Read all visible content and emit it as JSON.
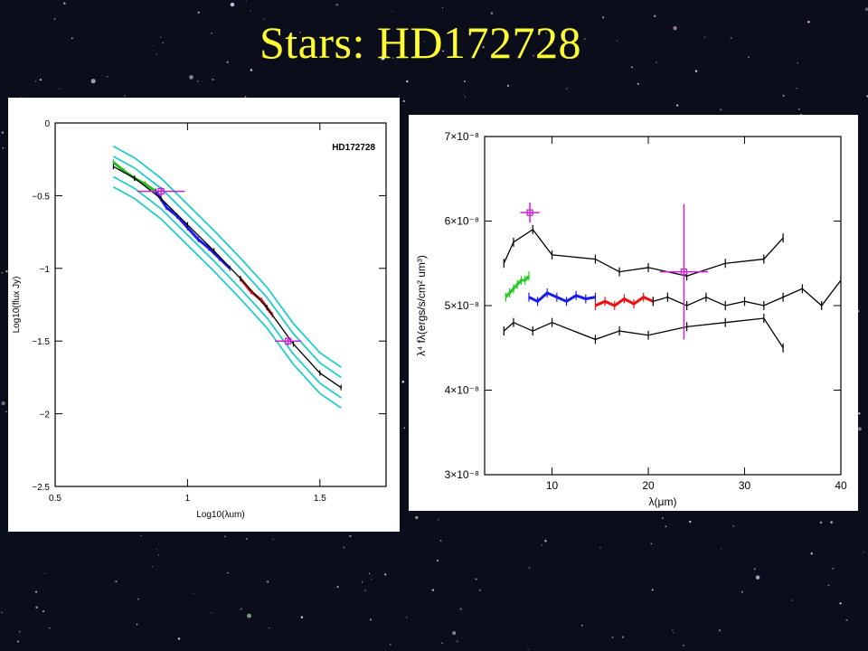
{
  "slide": {
    "title": "Stars: HD172728"
  },
  "chart_data": [
    {
      "type": "line",
      "annotation": "HD172728",
      "xlabel": "Log10(λum)",
      "ylabel": "Log10(flux Jy)",
      "xlim": [
        0.5,
        1.75
      ],
      "ylim": [
        -2.5,
        0
      ],
      "xticks": [
        "0.5",
        "1",
        "1.5"
      ],
      "xtick_values": [
        0.5,
        1.0,
        1.5
      ],
      "yticks": [
        "0",
        "−0.5",
        "−1",
        "−1.5",
        "−2",
        "−2.5"
      ],
      "ytick_values": [
        0,
        -0.5,
        -1,
        -1.5,
        -2,
        -2.5
      ],
      "colors": {
        "model_envelope": "#22cccc",
        "green": "#22bb22",
        "blue": "#1a1aee",
        "red": "#ee1111",
        "photometry": "#cc22cc",
        "black": "#000000"
      },
      "series": [
        {
          "color": "green",
          "x": [
            0.72,
            0.76,
            0.8,
            0.84,
            0.88
          ],
          "y": [
            -0.27,
            -0.33,
            -0.38,
            -0.42,
            -0.47
          ]
        },
        {
          "color": "blue",
          "x": [
            0.88,
            0.92,
            0.96,
            1.0,
            1.04,
            1.08,
            1.12,
            1.16
          ],
          "y": [
            -0.47,
            -0.58,
            -0.64,
            -0.72,
            -0.8,
            -0.86,
            -0.93,
            -1.0
          ]
        },
        {
          "color": "red",
          "x": [
            1.2,
            1.24,
            1.28,
            1.32
          ],
          "y": [
            -1.07,
            -1.16,
            -1.22,
            -1.32
          ]
        },
        {
          "color": "black",
          "x": [
            0.72,
            0.8,
            0.9,
            1.0,
            1.1,
            1.2,
            1.3,
            1.4,
            1.5,
            1.58
          ],
          "y": [
            -0.3,
            -0.38,
            -0.52,
            -0.7,
            -0.88,
            -1.07,
            -1.27,
            -1.52,
            -1.72,
            -1.82
          ]
        }
      ],
      "photometry": [
        {
          "x": 0.9,
          "y": -0.47,
          "xerr": 0.09,
          "yerr": 0.03
        },
        {
          "x": 1.38,
          "y": -1.5,
          "xerr": 0.05,
          "yerr": 0.03
        }
      ]
    },
    {
      "type": "line",
      "xlabel": "λ(μm)",
      "ylabel": "λ⁴ fλ(ergs/s/cm² um³)",
      "xlim": [
        3,
        40
      ],
      "ylim": [
        3e-08,
        7e-08
      ],
      "xticks": [
        "10",
        "20",
        "30",
        "40"
      ],
      "xtick_values": [
        10,
        20,
        30,
        40
      ],
      "yticks": [
        "3×10⁻⁸",
        "4×10⁻⁸",
        "5×10⁻⁸",
        "6×10⁻⁸",
        "7×10⁻⁸"
      ],
      "ytick_values": [
        3e-08,
        4e-08,
        5e-08,
        6e-08,
        7e-08
      ],
      "colors": {
        "green": "#22cc22",
        "blue": "#1a1aee",
        "red": "#ee1111",
        "photometry": "#cc22cc",
        "black": "#000000"
      },
      "series": [
        {
          "color": "green",
          "x": [
            5.2,
            5.6,
            6.0,
            6.4,
            6.8,
            7.2,
            7.6
          ],
          "y": [
            5.1e-08,
            5.15e-08,
            5.2e-08,
            5.25e-08,
            5.3e-08,
            5.3e-08,
            5.35e-08
          ]
        },
        {
          "color": "blue",
          "x": [
            7.6,
            8.5,
            9.5,
            10.5,
            11.5,
            12.5,
            13.5,
            14.5
          ],
          "y": [
            5.1e-08,
            5.05e-08,
            5.15e-08,
            5.1e-08,
            5.05e-08,
            5.12e-08,
            5.08e-08,
            5.1e-08
          ]
        },
        {
          "color": "red",
          "x": [
            14.5,
            15.5,
            16.5,
            17.5,
            18.5,
            19.5,
            20.5
          ],
          "y": [
            5e-08,
            5.05e-08,
            5e-08,
            5.08e-08,
            5.02e-08,
            5.1e-08,
            5.05e-08
          ]
        },
        {
          "color": "black",
          "x": [
            20.5,
            22,
            24,
            26,
            28,
            30,
            32,
            34,
            36,
            38,
            40
          ],
          "y": [
            5.05e-08,
            5.1e-08,
            5e-08,
            5.1e-08,
            5e-08,
            5.05e-08,
            5e-08,
            5.1e-08,
            5.2e-08,
            5e-08,
            5.3e-08
          ]
        },
        {
          "color": "black",
          "x": [
            5,
            6,
            8,
            10,
            14.5,
            17,
            20,
            24,
            28,
            32,
            34
          ],
          "y": [
            5.5e-08,
            5.75e-08,
            5.9e-08,
            5.6e-08,
            5.55e-08,
            5.4e-08,
            5.45e-08,
            5.35e-08,
            5.5e-08,
            5.55e-08,
            5.8e-08
          ]
        },
        {
          "color": "black",
          "x": [
            5,
            6,
            8,
            10,
            14.5,
            17,
            20,
            24,
            28,
            32,
            34
          ],
          "y": [
            4.7e-08,
            4.8e-08,
            4.7e-08,
            4.8e-08,
            4.6e-08,
            4.7e-08,
            4.65e-08,
            4.75e-08,
            4.8e-08,
            4.85e-08,
            4.5e-08
          ]
        }
      ],
      "photometry": [
        {
          "x": 7.7,
          "y": 6.1e-08,
          "xerr": 1.0,
          "yerr": 1.2e-09
        },
        {
          "x": 23.7,
          "y": 5.4e-08,
          "xerr": 2.5,
          "yerr": 8e-09
        }
      ]
    }
  ]
}
